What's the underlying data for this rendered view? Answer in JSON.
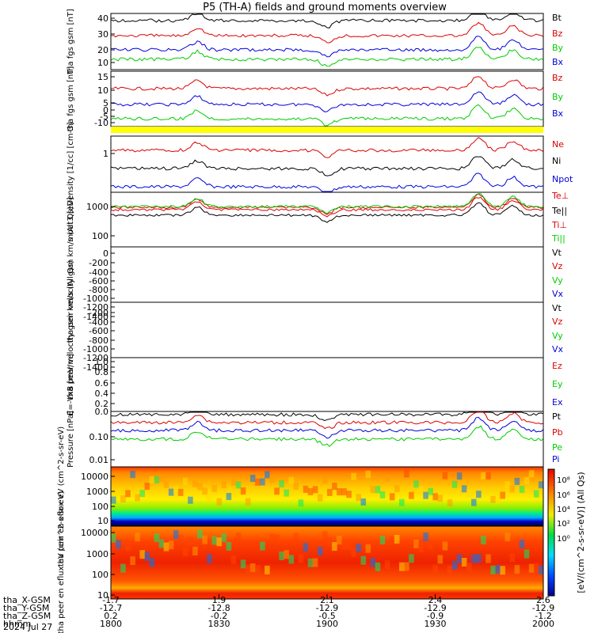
{
  "title": "P5 (TH-A) fields and ground moments overview",
  "colors": {
    "black": "#000000",
    "red": "#dd0000",
    "green": "#00cc00",
    "blue": "#0000dd",
    "yellow": "#ffff00"
  },
  "x_axis": {
    "ticks": [
      "1800",
      "1830",
      "1900",
      "1930",
      "2000"
    ],
    "rows": [
      {
        "label": "tha_X-GSM",
        "values": [
          "-1.7",
          "1.9",
          "2.1",
          "2.4",
          "2.6"
        ]
      },
      {
        "label": "tha_Y-GSM",
        "values": [
          "-12.7",
          "-12.8",
          "-12.9",
          "-12.9",
          "-12.9"
        ]
      },
      {
        "label": "tha_Z-GSM",
        "values": [
          "0.2",
          "-0.2",
          "-0.5",
          "-0.9",
          "-1.2"
        ]
      },
      {
        "label": "hhmm",
        "values": [
          "1800",
          "1830",
          "1900",
          "1930",
          "2000"
        ]
      }
    ],
    "date": "2024 Jul 27"
  },
  "chart_data": [
    {
      "type": "line",
      "ylabel": "tha fgs gsm [nT]",
      "yticks": [
        "40",
        "30",
        "20",
        "10"
      ],
      "ylim": [
        5,
        44
      ],
      "series": [
        {
          "name": "Bt",
          "color": "#000000",
          "level": 38
        },
        {
          "name": "Bz",
          "color": "#dd0000",
          "level": 29
        },
        {
          "name": "By",
          "color": "#00cc00",
          "level": 12
        },
        {
          "name": "Bx",
          "color": "#0000dd",
          "level": 17
        }
      ]
    },
    {
      "type": "line",
      "ylabel": "tha fgs gsm [nT]",
      "yticks": [
        "15",
        "10",
        "5",
        "0",
        "-5",
        "-10"
      ],
      "ylim": [
        -15,
        18
      ],
      "series": [
        {
          "name": "Bz",
          "color": "#dd0000",
          "level": 6
        },
        {
          "name": "By",
          "color": "#00cc00",
          "level": -8
        },
        {
          "name": "Bx",
          "color": "#0000dd",
          "level": -1
        }
      ]
    },
    {
      "type": "line",
      "ylabel": "Density [1/cc] [cm-3]",
      "yticks": [
        "1"
      ],
      "yscale": "log",
      "series": [
        {
          "name": "Ne",
          "color": "#dd0000"
        },
        {
          "name": "Ni",
          "color": "#000000"
        },
        {
          "name": "Npot",
          "color": "#0000dd"
        }
      ]
    },
    {
      "type": "line",
      "ylabel": "moat3 [eV]",
      "yticks": [
        "1000",
        "100"
      ],
      "yscale": "log",
      "series": [
        {
          "name": "Te⊥",
          "color": "#dd0000"
        },
        {
          "name": "Te||",
          "color": "#000000"
        },
        {
          "name": "Ti⊥",
          "color": "#dd0000"
        },
        {
          "name": "Ti||",
          "color": "#00cc00"
        }
      ]
    },
    {
      "type": "line",
      "ylabel": "tha peir velocity gsm km/s (All Qs)",
      "yticks": [
        "0",
        "-200",
        "-400",
        "-600",
        "-800",
        "-1000",
        "-1200",
        "-1400"
      ],
      "ylim": [
        -1400,
        0
      ],
      "series": [
        {
          "name": "Vt",
          "color": "#000000"
        },
        {
          "name": "Vz",
          "color": "#dd0000"
        },
        {
          "name": "Vy",
          "color": "#00cc00"
        },
        {
          "name": "Vx",
          "color": "#0000dd"
        }
      ]
    },
    {
      "type": "line",
      "ylabel": "tha peer velocity gsm km/s (All Qs)",
      "yticks": [
        "-200",
        "-400",
        "-600",
        "-800",
        "-1000",
        "-1200",
        "-1400"
      ],
      "ylim": [
        -1400,
        0
      ],
      "series": [
        {
          "name": "Vt",
          "color": "#000000"
        },
        {
          "name": "Vz",
          "color": "#dd0000"
        },
        {
          "name": "Vy",
          "color": "#00cc00"
        },
        {
          "name": "Vx",
          "color": "#0000dd"
        }
      ]
    },
    {
      "type": "line",
      "ylabel": "E=-VxB [mV/m]",
      "yticks": [
        "1.0",
        "0.8",
        "0.6",
        "0.4",
        "0.2",
        "0.0"
      ],
      "ylim": [
        0,
        1
      ],
      "series": [
        {
          "name": "Ez",
          "color": "#dd0000"
        },
        {
          "name": "Ey",
          "color": "#00cc00"
        },
        {
          "name": "Ex",
          "color": "#0000dd"
        }
      ]
    },
    {
      "type": "line",
      "ylabel": "Pressure [nPa]",
      "yticks": [
        "0.10",
        "0.01"
      ],
      "yscale": "log",
      "series": [
        {
          "name": "Pt",
          "color": "#000000"
        },
        {
          "name": "Pb",
          "color": "#dd0000"
        },
        {
          "name": "Pe",
          "color": "#00cc00"
        },
        {
          "name": "Pi",
          "color": "#0000dd"
        }
      ]
    },
    {
      "type": "heatmap",
      "ylabel": "tha peir en eflux eV (cm^2-s-sr-eV)",
      "yticks": [
        "10000",
        "1000",
        "100",
        "10"
      ],
      "yscale": "log"
    },
    {
      "type": "heatmap",
      "ylabel": "tha peer en eflux eV (cm^2-s-sr-eV)",
      "yticks": [
        "10000",
        "1000",
        "100",
        "10"
      ],
      "yscale": "log"
    }
  ],
  "colorbar": {
    "label": "[eV/(cm^2-s-sr-eV)] (All Qs)",
    "ticks": [
      "10⁸",
      "10⁶",
      "10⁴",
      "10²",
      "10⁰"
    ]
  }
}
